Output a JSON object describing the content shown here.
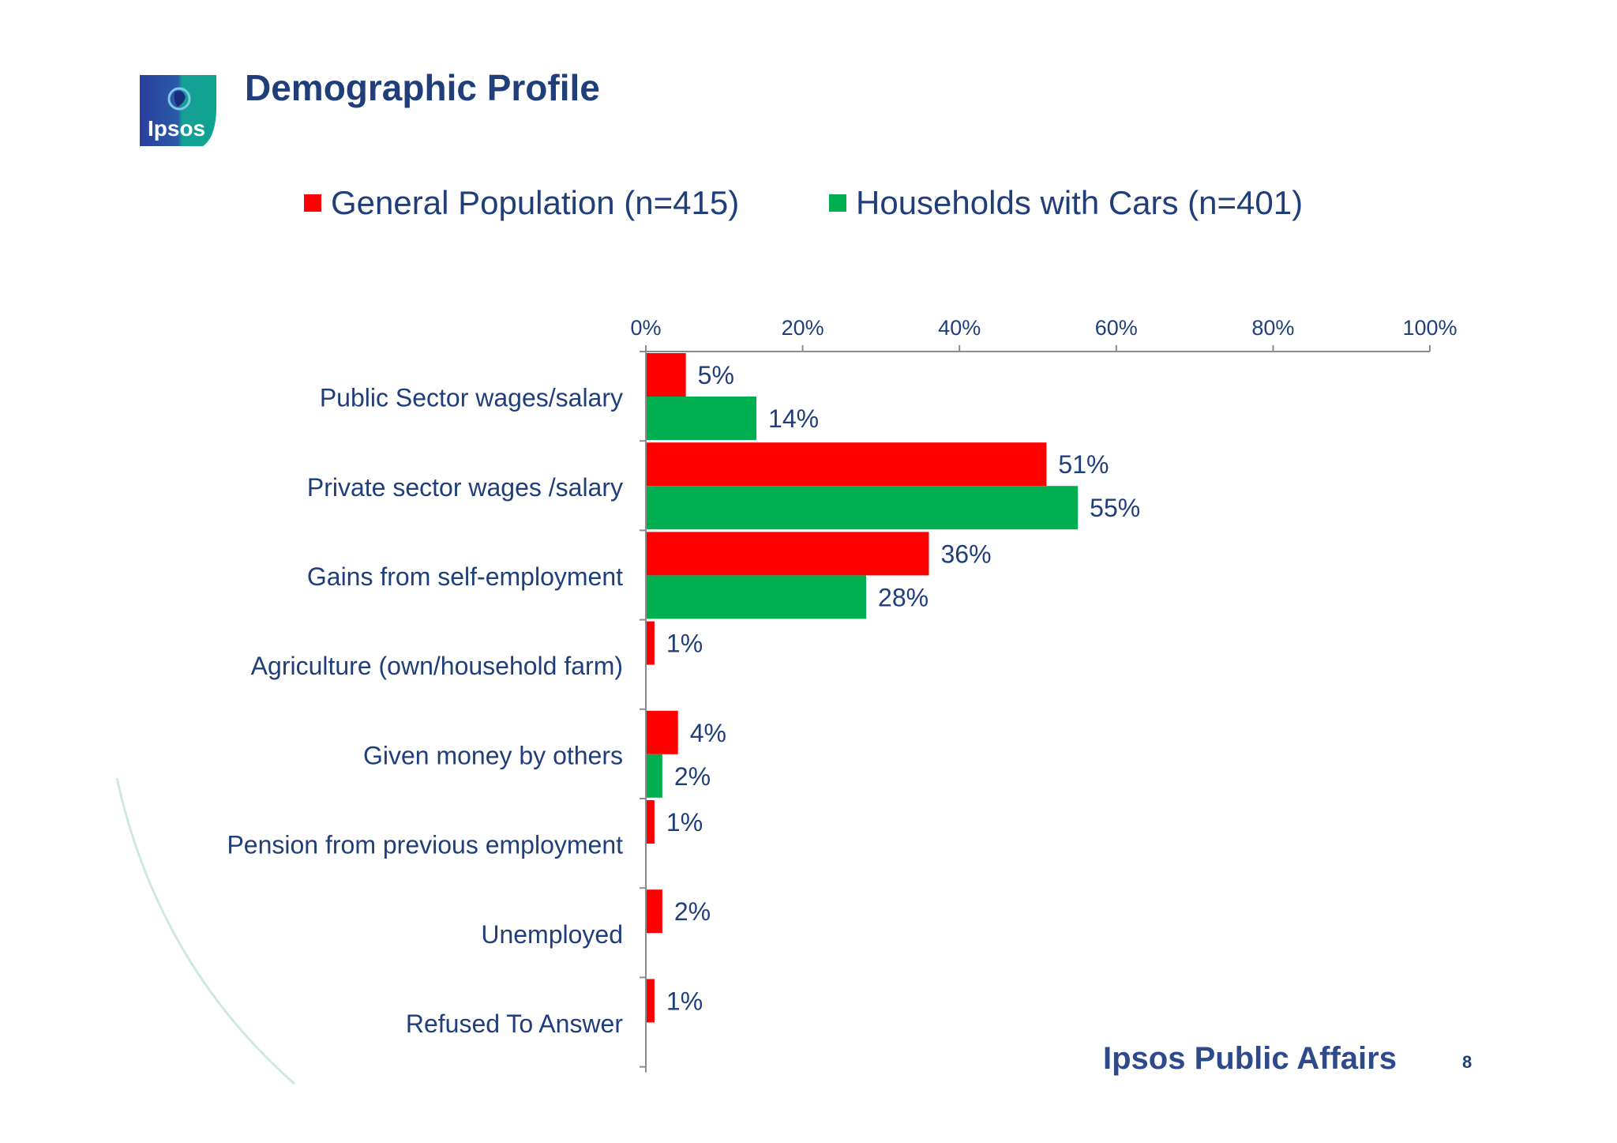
{
  "slide": {
    "title": "Demographic Profile",
    "logo_text": "Ipsos",
    "footer_brand": "Ipsos Public Affairs",
    "page_number": "8"
  },
  "colors": {
    "general_population": "#ff0000",
    "households_with_cars": "#00b050",
    "text": "#1f3e7a",
    "axis": "#8c8c8c"
  },
  "chart_data": {
    "type": "bar",
    "orientation": "horizontal",
    "categories": [
      "Public Sector wages/salary",
      "Private sector wages /salary",
      "Gains from self-employment",
      "Agriculture (own/household farm)",
      "Given money by others",
      "Pension from previous employment",
      "Unemployed",
      "Refused To Answer"
    ],
    "series": [
      {
        "name": "General Population (n=415)",
        "values": [
          5,
          51,
          36,
          1,
          4,
          1,
          2,
          1
        ],
        "labels": [
          "5%",
          "51%",
          "36%",
          "1%",
          "4%",
          "1%",
          "2%",
          "1%"
        ]
      },
      {
        "name": "Households with Cars (n=401)",
        "values": [
          14,
          55,
          28,
          null,
          2,
          null,
          null,
          null
        ],
        "labels": [
          "14%",
          "55%",
          "28%",
          "",
          "2%",
          "",
          "",
          ""
        ]
      }
    ],
    "xlim": [
      0,
      100
    ],
    "xticks": [
      "0%",
      "20%",
      "40%",
      "60%",
      "80%",
      "100%"
    ],
    "axis_position": "top",
    "legend_position": "top",
    "grid": false
  }
}
